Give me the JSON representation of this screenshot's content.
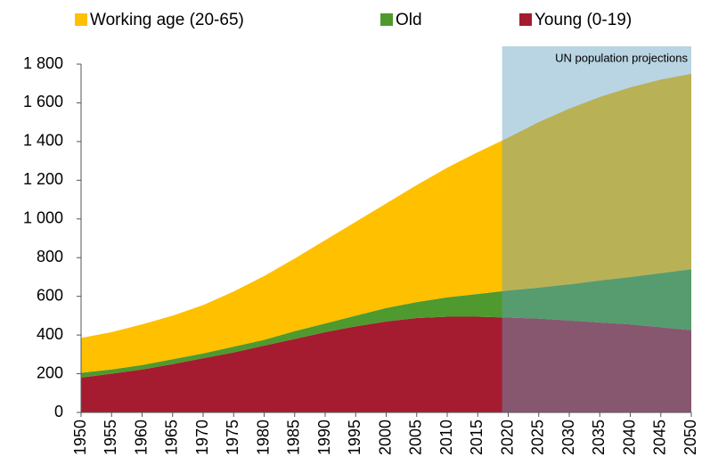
{
  "chart_data": {
    "type": "stacked-area",
    "x": [
      1950,
      1955,
      1960,
      1965,
      1970,
      1975,
      1980,
      1985,
      1990,
      1995,
      2000,
      2005,
      2010,
      2015,
      2020,
      2025,
      2030,
      2035,
      2040,
      2045,
      2050
    ],
    "xlim": [
      1950,
      2050
    ],
    "xticks": [
      1950,
      1955,
      1960,
      1965,
      1970,
      1975,
      1980,
      1985,
      1990,
      1995,
      2000,
      2005,
      2010,
      2015,
      2020,
      2025,
      2030,
      2035,
      2040,
      2045,
      2050
    ],
    "ylim": [
      0,
      1800
    ],
    "yticks": [
      0,
      200,
      400,
      600,
      800,
      {
        "value": 1000,
        "label": "1 000"
      },
      {
        "value": 1200,
        "label": "1 200"
      },
      {
        "value": 1400,
        "label": "1 400"
      },
      {
        "value": 1600,
        "label": "1 600"
      },
      {
        "value": 1800,
        "label": "1 800"
      }
    ],
    "series": [
      {
        "name": "Young (0-19)",
        "color": "#a51c30",
        "values": [
          180,
          200,
          222,
          250,
          280,
          310,
          345,
          380,
          415,
          445,
          470,
          488,
          495,
          495,
          490,
          485,
          475,
          465,
          455,
          440,
          425
        ]
      },
      {
        "name": "Old",
        "color": "#4e9a2e",
        "values": [
          25,
          22,
          23,
          25,
          25,
          30,
          30,
          40,
          45,
          55,
          70,
          82,
          100,
          117,
          140,
          160,
          187,
          217,
          245,
          280,
          315
        ]
      },
      {
        "name": "Working age (20-65)",
        "color": "#ffc000",
        "values": [
          180,
          193,
          210,
          225,
          250,
          285,
          330,
          375,
          430,
          485,
          540,
          605,
          670,
          733,
          790,
          855,
          908,
          948,
          980,
          1000,
          1010
        ]
      }
    ],
    "shade": {
      "from": 2019,
      "to": 2050,
      "label": "UN population projections"
    }
  }
}
